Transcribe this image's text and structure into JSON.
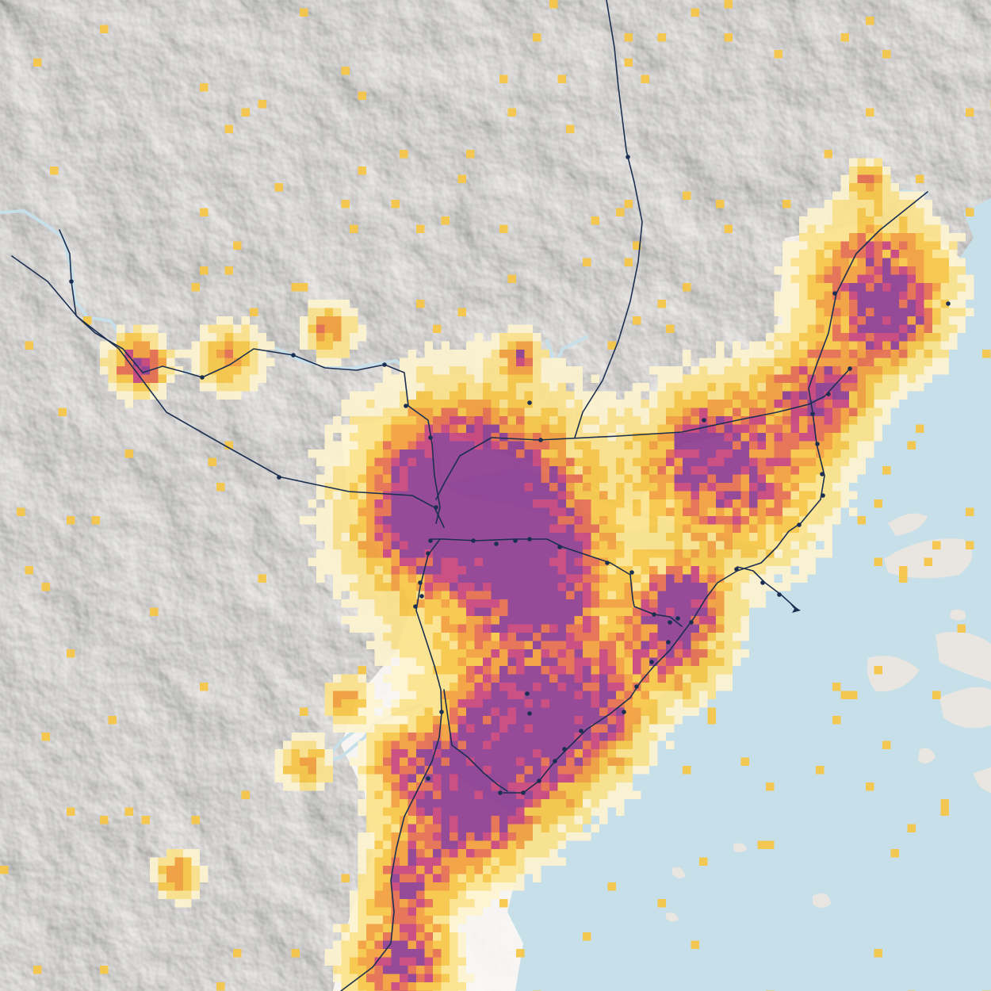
{
  "map": {
    "colors": {
      "land": "#f4f2ef",
      "terrain_shadow": "#cfcac4",
      "terrain_highlight": "#ffffff",
      "lowland": "#fbfaf7",
      "water": "#c6dfe8",
      "river": "#c6dfe8",
      "rail": "#1b2f52",
      "station": "#1b2f52"
    },
    "density_scale": [
      "#fdf3cf",
      "#fbe28a",
      "#f6c644",
      "#f29d3a",
      "#e46b4c",
      "#c7417a",
      "#8d3c90"
    ],
    "icons": {
      "station": "station-dot-icon",
      "rail_terminus": "arrowhead-icon"
    }
  }
}
